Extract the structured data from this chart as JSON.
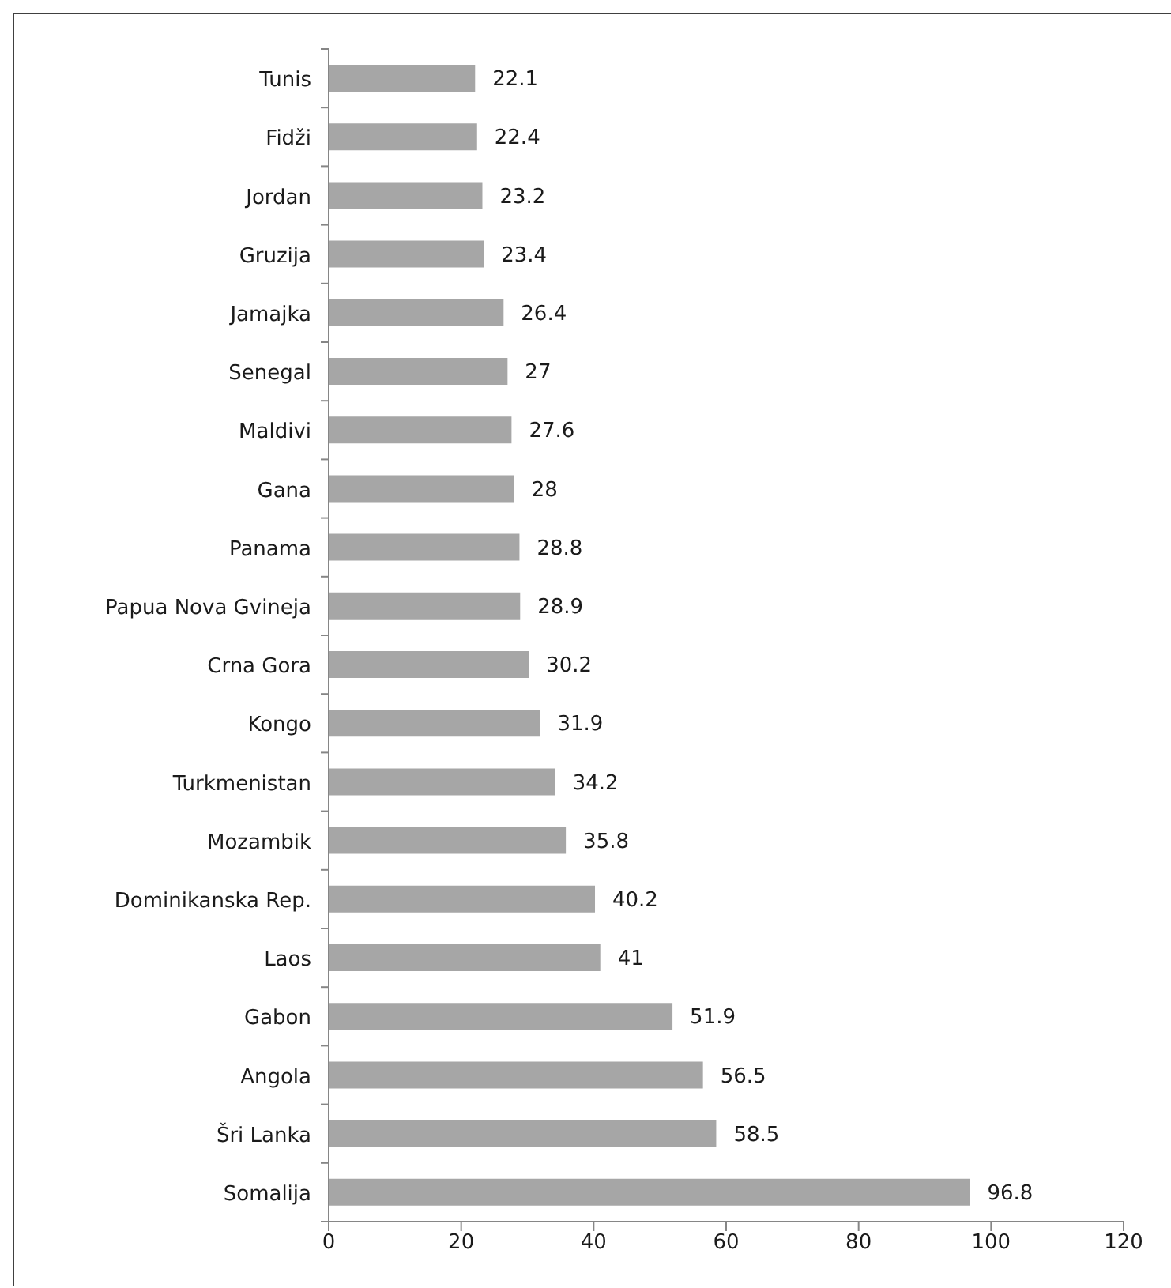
{
  "chart_data": {
    "type": "bar",
    "orientation": "horizontal",
    "categories": [
      "Tunis",
      "Fidži",
      "Jordan",
      "Gruzija",
      "Jamajka",
      "Senegal",
      "Maldivi",
      "Gana",
      "Panama",
      "Papua Nova Gvineja",
      "Crna Gora",
      "Kongo",
      "Turkmenistan",
      "Mozambik",
      "Dominikanska Rep.",
      "Laos",
      "Gabon",
      "Angola",
      "Šri Lanka",
      "Somalija"
    ],
    "values": [
      22.1,
      22.4,
      23.2,
      23.4,
      26.4,
      27,
      27.6,
      28,
      28.8,
      28.9,
      30.2,
      31.9,
      34.2,
      35.8,
      40.2,
      41,
      51.9,
      56.5,
      58.5,
      96.8
    ],
    "color": "#a6a6a6",
    "xlim": [
      0,
      120
    ],
    "xticks": [
      0,
      20,
      40,
      60,
      80,
      100,
      120
    ],
    "data_labels": true
  }
}
